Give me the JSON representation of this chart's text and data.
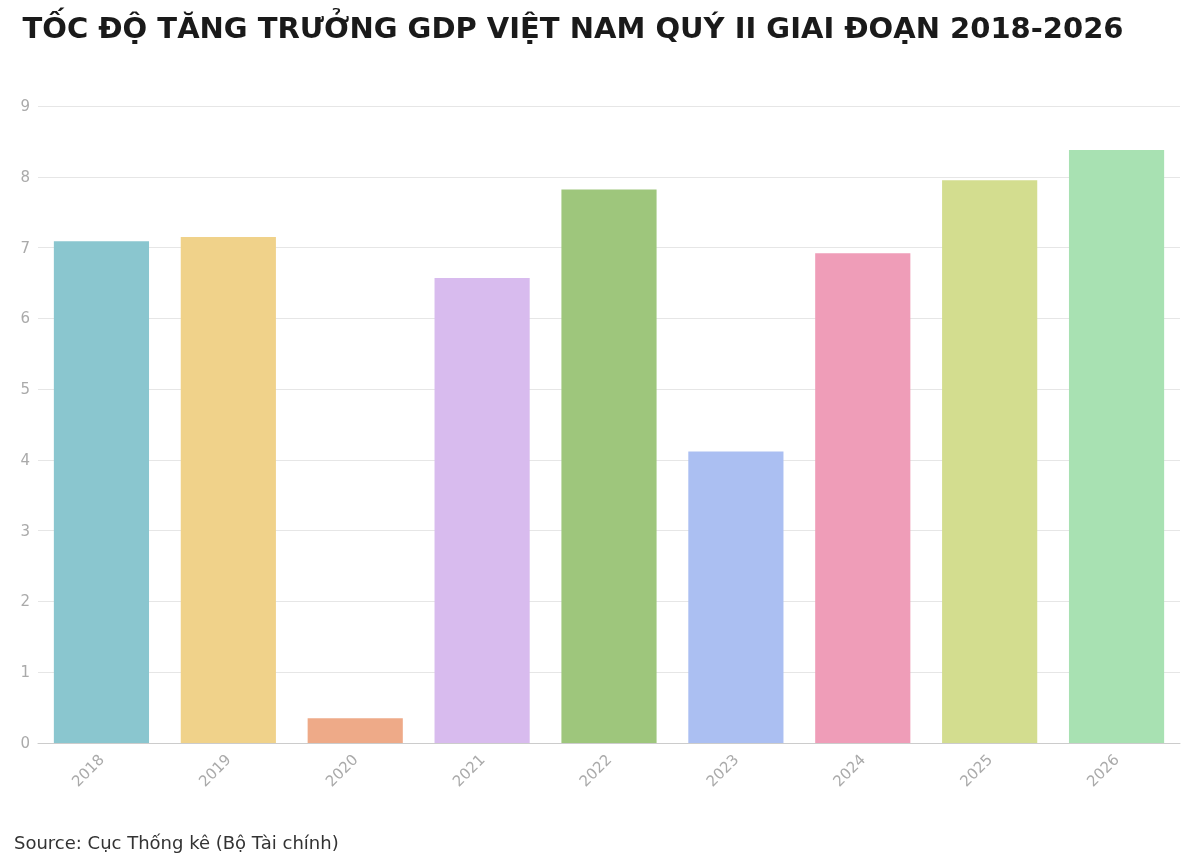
{
  "chart_data": {
    "type": "bar",
    "title": "TỐC ĐỘ TĂNG TRƯỞNG GDP VIỆT NAM QUÝ II GIAI ĐOẠN 2018-2026",
    "categories": [
      "2018",
      "2019",
      "2020",
      "2021",
      "2022",
      "2023",
      "2024",
      "2025",
      "2026"
    ],
    "values": [
      7.09,
      7.15,
      0.35,
      6.57,
      7.82,
      4.12,
      6.92,
      7.95,
      8.38
    ],
    "colors": [
      "#8ac6cf",
      "#f0d28a",
      "#eeaa88",
      "#d8bbee",
      "#9ec67c",
      "#abbff2",
      "#ef9db8",
      "#d3dd8f",
      "#a8e1b2"
    ],
    "ylim": [
      0,
      9
    ],
    "yticks": [
      0,
      1,
      2,
      3,
      4,
      5,
      6,
      7,
      8,
      9
    ],
    "grid": "y",
    "annotations": [
      "Source: Cục Thống kê (Bộ Tài chính)"
    ]
  }
}
